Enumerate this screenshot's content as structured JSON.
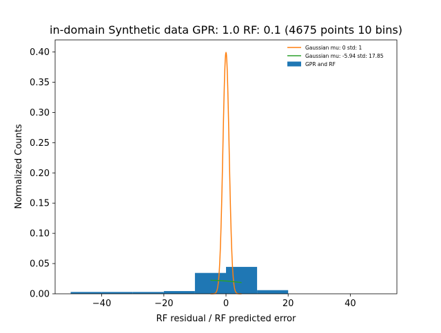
{
  "colors": {
    "bar": "#1f77b4",
    "gaussian_std": "#ff7f0e",
    "gaussian_fit": "#2ca02c"
  },
  "chart_data": {
    "type": "bar",
    "title": "in-domain Synthetic data GPR: 1.0 RF: 0.1 (4675 points 10 bins)",
    "xlabel": "RF residual / RF predicted error",
    "ylabel": "Normalized Counts",
    "xlim": [
      -55,
      55
    ],
    "ylim": [
      0,
      0.42
    ],
    "xticks": [
      -40,
      -20,
      0,
      20,
      40
    ],
    "yticks": [
      0.0,
      0.05,
      0.1,
      0.15,
      0.2,
      0.25,
      0.3,
      0.35,
      0.4
    ],
    "xtick_labels": [
      "−40",
      "−20",
      "0",
      "20",
      "40"
    ],
    "ytick_labels": [
      "0.00",
      "0.05",
      "0.10",
      "0.15",
      "0.20",
      "0.25",
      "0.30",
      "0.35",
      "0.40"
    ],
    "grid": false,
    "legend_position": "top-right",
    "histogram": {
      "name": "GPR and RF",
      "bin_edges": [
        -50,
        -40,
        -30,
        -20,
        -10,
        0,
        10,
        20,
        30,
        40,
        50
      ],
      "values": [
        0.003,
        0.003,
        0.003,
        0.0045,
        0.0345,
        0.0445,
        0.006,
        0.0,
        0.0,
        0.0
      ]
    },
    "lines": [
      {
        "name": "Gaussian mu: 0 std: 1",
        "mu": 0,
        "std": 1,
        "x_range": [
          -5,
          5
        ],
        "color_key": "gaussian_std"
      },
      {
        "name": "Gaussian mu: -5.94 std: 17.85",
        "mu": -5.94,
        "std": 17.85,
        "x_range": [
          -5,
          5
        ],
        "color_key": "gaussian_fit"
      }
    ]
  }
}
